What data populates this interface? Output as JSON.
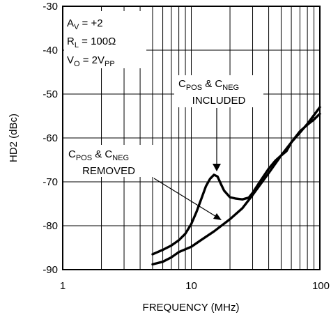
{
  "chart_data": {
    "type": "line",
    "x_scale": "log",
    "xlabel": "FREQUENCY (MHz)",
    "ylabel": "HD2 (dBc)",
    "xlim": [
      1,
      100
    ],
    "ylim": [
      -90,
      -30
    ],
    "x_ticks": [
      "1",
      "10",
      "100"
    ],
    "y_ticks": [
      "-30",
      "-40",
      "-50",
      "-60",
      "-70",
      "-80",
      "-90"
    ],
    "grid": true,
    "conditions": [
      {
        "main": "A",
        "sub": "V",
        "rest": " = +2"
      },
      {
        "main": "R",
        "sub": "L",
        "rest": " = 100Ω"
      },
      {
        "main": "V",
        "sub": "O",
        "rest": " = 2V",
        "tail_sub": "PP"
      }
    ],
    "series": [
      {
        "name": "CPOS & CNEG INCLUDED",
        "x": [
          5,
          6,
          7,
          8,
          9,
          10,
          11,
          12,
          13,
          14,
          15,
          16,
          17,
          18,
          20,
          22,
          25,
          28,
          30,
          35,
          40,
          45,
          50,
          55,
          60,
          70,
          80,
          90,
          100
        ],
        "y": [
          -86.5,
          -85.5,
          -84.5,
          -83.3,
          -81.8,
          -79.6,
          -76.8,
          -73.8,
          -71.0,
          -69.3,
          -68.4,
          -68.8,
          -70.5,
          -72.0,
          -73.5,
          -73.8,
          -74.0,
          -73.6,
          -72.5,
          -69.5,
          -67.0,
          -65.2,
          -64.0,
          -63.0,
          -61.0,
          -58.5,
          -57.0,
          -55.8,
          -54.5
        ]
      },
      {
        "name": "CPOS & CNEG REMOVED",
        "x": [
          5,
          6,
          7,
          8,
          10,
          12,
          15,
          20,
          25,
          30,
          40,
          50,
          60,
          70,
          80,
          90,
          100
        ],
        "y": [
          -88.8,
          -88.2,
          -87.2,
          -86.0,
          -84.8,
          -83.2,
          -81.3,
          -78.5,
          -76.0,
          -73.0,
          -68.0,
          -64.0,
          -61.0,
          -58.8,
          -56.8,
          -54.8,
          -53.0
        ]
      }
    ],
    "annotations": [
      {
        "main1": "C",
        "sub1": "POS",
        "mid": " & C",
        "sub2": "NEG",
        "line2": "INCLUDED"
      },
      {
        "main1": "C",
        "sub1": "POS",
        "mid": " & C",
        "sub2": "NEG",
        "line2": "REMOVED"
      }
    ]
  }
}
